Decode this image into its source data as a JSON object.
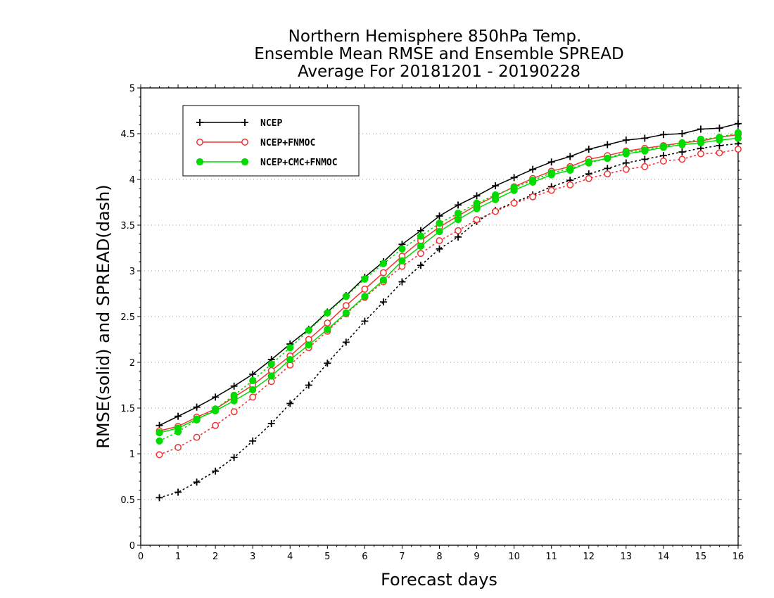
{
  "chart_data": {
    "type": "line",
    "title_lines": [
      "Northern Hemisphere 850hPa Temp.",
      "Ensemble Mean RMSE and Ensemble SPREAD",
      "Average For 20181201 - 20190228"
    ],
    "xlabel": "Forecast days",
    "ylabel": "RMSE(solid) and SPREAD(dash)",
    "xlim": [
      0,
      16
    ],
    "ylim": [
      0,
      5
    ],
    "xticks": [
      0,
      1,
      2,
      3,
      4,
      5,
      6,
      7,
      8,
      9,
      10,
      11,
      12,
      13,
      14,
      15,
      16
    ],
    "yticks": [
      0,
      0.5,
      1,
      1.5,
      2,
      2.5,
      3,
      3.5,
      4,
      4.5,
      5
    ],
    "grid": "horizontal dotted",
    "legend_position": "top-left",
    "x": [
      0.5,
      1,
      1.5,
      2,
      2.5,
      3,
      3.5,
      4,
      4.5,
      5,
      5.5,
      6,
      6.5,
      7,
      7.5,
      8,
      8.5,
      9,
      9.5,
      10,
      10.5,
      11,
      11.5,
      12,
      12.5,
      13,
      13.5,
      14,
      14.5,
      15,
      15.5,
      16
    ],
    "series": [
      {
        "name": "NCEP",
        "color": "#000000",
        "marker": "plus",
        "rmse": [
          1.31,
          1.41,
          1.51,
          1.62,
          1.74,
          1.87,
          2.03,
          2.2,
          2.36,
          2.55,
          2.73,
          2.93,
          3.1,
          3.29,
          3.44,
          3.6,
          3.72,
          3.82,
          3.93,
          4.02,
          4.11,
          4.19,
          4.25,
          4.33,
          4.38,
          4.43,
          4.45,
          4.49,
          4.5,
          4.55,
          4.56,
          4.61
        ],
        "spread": [
          0.52,
          0.58,
          0.69,
          0.81,
          0.96,
          1.14,
          1.33,
          1.55,
          1.75,
          1.99,
          2.22,
          2.45,
          2.66,
          2.88,
          3.06,
          3.24,
          3.37,
          3.54,
          3.66,
          3.75,
          3.83,
          3.92,
          3.99,
          4.06,
          4.12,
          4.18,
          4.22,
          4.26,
          4.3,
          4.34,
          4.37,
          4.39
        ]
      },
      {
        "name": "NCEP+FNMOC",
        "color": "#f03232",
        "marker": "open-circle",
        "rmse": [
          1.25,
          1.3,
          1.4,
          1.49,
          1.62,
          1.75,
          1.91,
          2.07,
          2.25,
          2.43,
          2.62,
          2.8,
          2.98,
          3.16,
          3.33,
          3.48,
          3.6,
          3.72,
          3.82,
          3.92,
          4.01,
          4.09,
          4.14,
          4.22,
          4.26,
          4.31,
          4.34,
          4.37,
          4.4,
          4.42,
          4.46,
          4.49
        ],
        "spread": [
          0.99,
          1.07,
          1.18,
          1.31,
          1.46,
          1.62,
          1.79,
          1.97,
          2.16,
          2.34,
          2.53,
          2.71,
          2.88,
          3.05,
          3.19,
          3.33,
          3.44,
          3.56,
          3.65,
          3.74,
          3.81,
          3.88,
          3.94,
          4.01,
          4.06,
          4.11,
          4.14,
          4.2,
          4.22,
          4.28,
          4.29,
          4.33
        ]
      },
      {
        "name": "NCEP+CMC+FNMOC",
        "color": "#00dc00",
        "marker": "filled-circle",
        "rmse": [
          1.23,
          1.28,
          1.38,
          1.47,
          1.58,
          1.7,
          1.85,
          2.03,
          2.19,
          2.36,
          2.54,
          2.72,
          2.9,
          3.11,
          3.27,
          3.43,
          3.56,
          3.68,
          3.78,
          3.88,
          3.97,
          4.05,
          4.1,
          4.19,
          4.23,
          4.28,
          4.31,
          4.35,
          4.38,
          4.4,
          4.43,
          4.45
        ],
        "spread": [
          1.14,
          1.24,
          1.37,
          1.49,
          1.64,
          1.8,
          1.98,
          2.16,
          2.35,
          2.54,
          2.72,
          2.91,
          3.08,
          3.24,
          3.38,
          3.52,
          3.63,
          3.74,
          3.83,
          3.91,
          3.99,
          4.07,
          4.12,
          4.18,
          4.23,
          4.3,
          4.32,
          4.36,
          4.4,
          4.44,
          4.46,
          4.51
        ]
      }
    ]
  }
}
